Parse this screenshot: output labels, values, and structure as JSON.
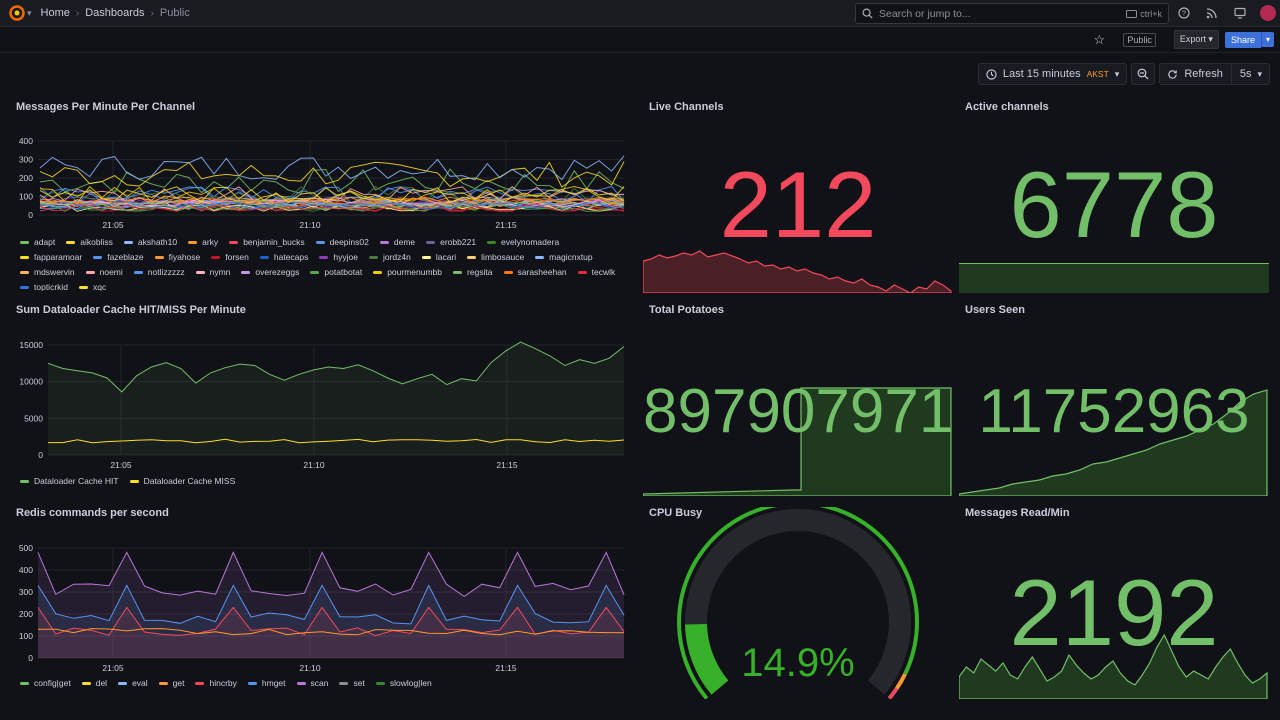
{
  "breadcrumb": {
    "home": "Home",
    "dashboards": "Dashboards",
    "current": "Public"
  },
  "search": {
    "placeholder": "Search or jump to...",
    "shortcut": "ctrl+k"
  },
  "subbar": {
    "public_tag": "Public",
    "export_label": "Export",
    "share_label": "Share"
  },
  "timepicker": {
    "range": "Last 15 minutes",
    "tz": "AKST",
    "refresh_label": "Refresh",
    "interval": "5s"
  },
  "colors": {
    "green": "#73bf69",
    "red": "#f2495c",
    "bg": "#111217"
  },
  "panels": {
    "messages": {
      "title": "Messages Per Minute Per Channel",
      "legend": [
        {
          "name": "adapt",
          "color": "#73bf69"
        },
        {
          "name": "aikobliss",
          "color": "#fade2a"
        },
        {
          "name": "akshath10",
          "color": "#8ab8ff"
        },
        {
          "name": "arky",
          "color": "#ff9830"
        },
        {
          "name": "benjamin_bucks",
          "color": "#f2495c"
        },
        {
          "name": "deepins02",
          "color": "#5794f2"
        },
        {
          "name": "deme",
          "color": "#b877d9"
        },
        {
          "name": "erobb221",
          "color": "#705da0"
        },
        {
          "name": "evelynomadera",
          "color": "#37872d"
        },
        {
          "name": "fapparamoar",
          "color": "#fade2a"
        },
        {
          "name": "fazeblaze",
          "color": "#5794f2"
        },
        {
          "name": "fiyahose",
          "color": "#ff9830"
        },
        {
          "name": "forsen",
          "color": "#c4162a"
        },
        {
          "name": "hatecaps",
          "color": "#1f60c4"
        },
        {
          "name": "hyyjoe",
          "color": "#8f3bb8"
        },
        {
          "name": "jordz4n",
          "color": "#4a7a3f"
        },
        {
          "name": "lacari",
          "color": "#fff899"
        },
        {
          "name": "limbosauce",
          "color": "#ffcb7d"
        },
        {
          "name": "magicnxtup",
          "color": "#8ab8ff"
        },
        {
          "name": "mdswervin",
          "color": "#ffb357"
        },
        {
          "name": "noemi",
          "color": "#ffa6b0"
        },
        {
          "name": "notlizzzzz",
          "color": "#5794f2"
        },
        {
          "name": "nymn",
          "color": "#ffb3c0"
        },
        {
          "name": "overezeggs",
          "color": "#ca95e5"
        },
        {
          "name": "potatbotat",
          "color": "#56a64b"
        },
        {
          "name": "pourmenumbb",
          "color": "#f2cc0c"
        },
        {
          "name": "regsita",
          "color": "#73bf69"
        },
        {
          "name": "sarasheehan",
          "color": "#ff780a"
        },
        {
          "name": "tecwlk",
          "color": "#e02f44"
        },
        {
          "name": "topticrkid",
          "color": "#3274d9"
        },
        {
          "name": "xqc",
          "color": "#fade2a"
        }
      ],
      "x_ticks": [
        "21:05",
        "21:10",
        "21:15"
      ],
      "y_ticks": [
        "400",
        "300",
        "200",
        "100",
        "0"
      ]
    },
    "live": {
      "title": "Live Channels",
      "value": "212"
    },
    "active": {
      "title": "Active channels",
      "value": "6778"
    },
    "dataloader": {
      "title": "Sum Dataloader Cache HIT/MISS Per Minute",
      "legend": [
        {
          "name": "Dataloader Cache HIT",
          "color": "#73bf69"
        },
        {
          "name": "Dataloader Cache MISS",
          "color": "#fade2a"
        }
      ],
      "x_ticks": [
        "21:05",
        "21:10",
        "21:15"
      ],
      "y_ticks": [
        "15000",
        "10000",
        "5000",
        "0"
      ]
    },
    "potatoes": {
      "title": "Total Potatoes",
      "value": "897907971"
    },
    "users": {
      "title": "Users Seen",
      "value": "11752963"
    },
    "redis": {
      "title": "Redis commands per second",
      "legend": [
        {
          "name": "config|get",
          "color": "#73bf69"
        },
        {
          "name": "del",
          "color": "#fade2a"
        },
        {
          "name": "eval",
          "color": "#8ab8ff"
        },
        {
          "name": "get",
          "color": "#ff9830"
        },
        {
          "name": "hincrby",
          "color": "#f2495c"
        },
        {
          "name": "hmget",
          "color": "#5794f2"
        },
        {
          "name": "scan",
          "color": "#b877d9"
        },
        {
          "name": "set",
          "color": "#8e8e9a"
        },
        {
          "name": "slowlog|len",
          "color": "#37872d"
        }
      ],
      "x_ticks": [
        "21:05",
        "21:10",
        "21:15"
      ],
      "y_ticks": [
        "500",
        "400",
        "300",
        "200",
        "100",
        "0"
      ]
    },
    "cpu": {
      "title": "CPU Busy",
      "value": "14.9%",
      "percent": 14.9
    },
    "messages_read": {
      "title": "Messages Read/Min",
      "value": "2192"
    }
  }
}
